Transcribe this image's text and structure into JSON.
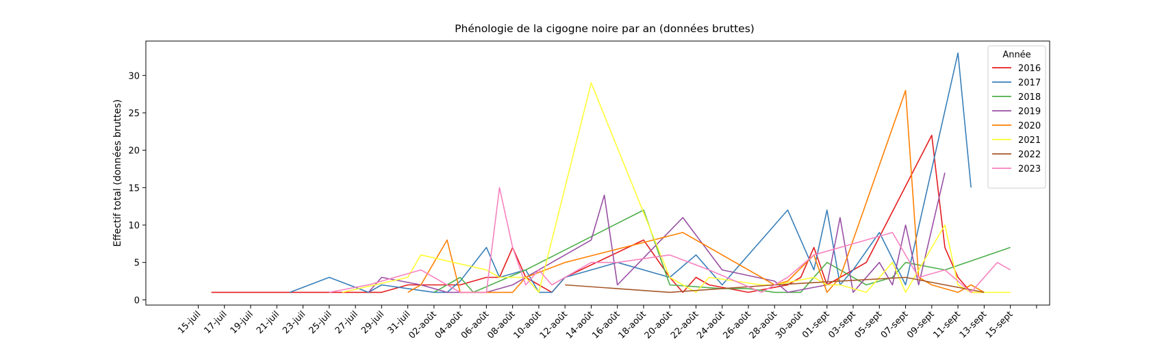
{
  "chart_data": {
    "type": "line",
    "title": "Phénologie de la cigogne noire par an (données bruttes)",
    "xlabel": "",
    "ylabel": "Effectif total (données bruttes)",
    "x_axis": "date (day of year, 2000-series calendar)",
    "xlim": [
      "07-11",
      "09-18"
    ],
    "ylim": [
      -0.7,
      34.6
    ],
    "yticks": [
      0,
      5,
      10,
      15,
      20,
      25,
      30
    ],
    "xticks": [
      {
        "date": "07-15",
        "label": "15-juil"
      },
      {
        "date": "07-17",
        "label": "17-juil"
      },
      {
        "date": "07-19",
        "label": "19-juil"
      },
      {
        "date": "07-21",
        "label": "21-juil"
      },
      {
        "date": "07-23",
        "label": "23-juil"
      },
      {
        "date": "07-25",
        "label": "25-juil"
      },
      {
        "date": "07-27",
        "label": "27-juil"
      },
      {
        "date": "07-29",
        "label": "29-juil"
      },
      {
        "date": "07-31",
        "label": "31-juil"
      },
      {
        "date": "08-02",
        "label": "02-août"
      },
      {
        "date": "08-04",
        "label": "04-août"
      },
      {
        "date": "08-06",
        "label": "06-août"
      },
      {
        "date": "08-08",
        "label": "08-août"
      },
      {
        "date": "08-10",
        "label": "10-août"
      },
      {
        "date": "08-12",
        "label": "12-août"
      },
      {
        "date": "08-14",
        "label": "14-août"
      },
      {
        "date": "08-16",
        "label": "16-août"
      },
      {
        "date": "08-18",
        "label": "18-août"
      },
      {
        "date": "08-20",
        "label": "20-août"
      },
      {
        "date": "08-22",
        "label": "22-août"
      },
      {
        "date": "08-24",
        "label": "24-août"
      },
      {
        "date": "08-26",
        "label": "26-août"
      },
      {
        "date": "08-28",
        "label": "28-août"
      },
      {
        "date": "08-30",
        "label": "30-août"
      },
      {
        "date": "09-01",
        "label": "01-sept"
      },
      {
        "date": "09-03",
        "label": "03-sept"
      },
      {
        "date": "09-05",
        "label": "05-sept"
      },
      {
        "date": "09-07",
        "label": "07-sept"
      },
      {
        "date": "09-09",
        "label": "09-sept"
      },
      {
        "date": "09-11",
        "label": "11-sept"
      },
      {
        "date": "09-13",
        "label": "13-sept"
      },
      {
        "date": "09-15",
        "label": "15-sept"
      }
    ],
    "legend": {
      "title": "Année",
      "position": "top-right"
    },
    "grid": false,
    "series": [
      {
        "name": "2016",
        "color": "#e41a1c",
        "points": [
          [
            "07-16",
            1
          ],
          [
            "07-29",
            1
          ],
          [
            "07-31",
            2
          ],
          [
            "08-04",
            2
          ],
          [
            "08-06",
            3
          ],
          [
            "08-07",
            3
          ],
          [
            "08-08",
            7
          ],
          [
            "08-09",
            3
          ],
          [
            "08-11",
            1
          ],
          [
            "08-12",
            3
          ],
          [
            "08-18",
            8
          ],
          [
            "08-20",
            3
          ],
          [
            "08-21",
            1
          ],
          [
            "08-22",
            3
          ],
          [
            "08-23",
            2
          ],
          [
            "08-26",
            1
          ],
          [
            "08-29",
            2
          ],
          [
            "08-30",
            3
          ],
          [
            "08-31",
            7
          ],
          [
            "09-01",
            2
          ],
          [
            "09-04",
            5
          ],
          [
            "09-09",
            22
          ],
          [
            "09-10",
            7
          ],
          [
            "09-11",
            3
          ],
          [
            "09-12",
            1
          ],
          [
            "09-13",
            1
          ]
        ]
      },
      {
        "name": "2017",
        "color": "#377eb8",
        "points": [
          [
            "07-22",
            1
          ],
          [
            "07-25",
            3
          ],
          [
            "07-28",
            1
          ],
          [
            "07-29",
            2
          ],
          [
            "07-31",
            1.5
          ],
          [
            "08-02",
            1
          ],
          [
            "08-03",
            1
          ],
          [
            "08-04",
            2.5
          ],
          [
            "08-06",
            7
          ],
          [
            "08-07",
            3
          ],
          [
            "08-09",
            4
          ],
          [
            "08-10",
            1
          ],
          [
            "08-11",
            1
          ],
          [
            "08-12",
            3
          ],
          [
            "08-16",
            5
          ],
          [
            "08-20",
            3
          ],
          [
            "08-22",
            6
          ],
          [
            "08-24",
            2
          ],
          [
            "08-29",
            12
          ],
          [
            "08-31",
            4
          ],
          [
            "09-01",
            12
          ],
          [
            "09-02",
            2
          ],
          [
            "09-03",
            4
          ],
          [
            "09-05",
            9
          ],
          [
            "09-07",
            2
          ],
          [
            "09-11",
            33
          ],
          [
            "09-12",
            15
          ]
        ]
      },
      {
        "name": "2018",
        "color": "#4daf4a",
        "points": [
          [
            "08-02",
            1
          ],
          [
            "08-04",
            3
          ],
          [
            "08-05",
            1
          ],
          [
            "08-09",
            4
          ],
          [
            "08-18",
            12
          ],
          [
            "08-20",
            2
          ],
          [
            "08-24",
            1.5
          ],
          [
            "08-26",
            1.5
          ],
          [
            "08-28",
            1
          ],
          [
            "08-30",
            1
          ],
          [
            "09-01",
            5
          ],
          [
            "09-02",
            4
          ],
          [
            "09-04",
            2
          ],
          [
            "09-06",
            3
          ],
          [
            "09-07",
            5
          ],
          [
            "09-10",
            4
          ],
          [
            "09-15",
            7
          ]
        ]
      },
      {
        "name": "2019",
        "color": "#984ea3",
        "points": [
          [
            "07-28",
            1
          ],
          [
            "07-29",
            3
          ],
          [
            "08-01",
            2
          ],
          [
            "08-02",
            1.5
          ],
          [
            "08-03",
            1
          ],
          [
            "08-05",
            1
          ],
          [
            "08-06",
            1
          ],
          [
            "08-08",
            2
          ],
          [
            "08-10",
            4
          ],
          [
            "08-14",
            8
          ],
          [
            "08-15",
            14
          ],
          [
            "08-16",
            2
          ],
          [
            "08-21",
            11
          ],
          [
            "08-24",
            4
          ],
          [
            "08-28",
            2.5
          ],
          [
            "08-29",
            1
          ],
          [
            "09-01",
            2
          ],
          [
            "09-02",
            11
          ],
          [
            "09-03",
            1
          ],
          [
            "09-05",
            5
          ],
          [
            "09-06",
            2
          ],
          [
            "09-07",
            10
          ],
          [
            "09-08",
            2
          ],
          [
            "09-10",
            17
          ]
        ]
      },
      {
        "name": "2020",
        "color": "#ff7f00",
        "points": [
          [
            "07-31",
            1
          ],
          [
            "08-01",
            2
          ],
          [
            "08-03",
            8
          ],
          [
            "08-04",
            1
          ],
          [
            "08-05",
            1
          ],
          [
            "08-07",
            1
          ],
          [
            "08-08",
            1
          ],
          [
            "08-09",
            3
          ],
          [
            "08-12",
            5
          ],
          [
            "08-21",
            9
          ],
          [
            "08-28",
            2
          ],
          [
            "08-29",
            2.5
          ],
          [
            "08-31",
            6
          ],
          [
            "09-01",
            1
          ],
          [
            "09-02",
            3
          ],
          [
            "09-07",
            28
          ],
          [
            "09-08",
            3
          ],
          [
            "09-09",
            2
          ],
          [
            "09-11",
            1
          ],
          [
            "09-12",
            2
          ],
          [
            "09-13",
            1
          ]
        ]
      },
      {
        "name": "2021",
        "color": "#ffff33",
        "points": [
          [
            "07-26",
            1
          ],
          [
            "07-31",
            3
          ],
          [
            "08-01",
            6
          ],
          [
            "08-06",
            4
          ],
          [
            "08-07",
            3
          ],
          [
            "08-09",
            3
          ],
          [
            "08-10",
            1
          ],
          [
            "08-14",
            29
          ],
          [
            "08-20",
            3
          ],
          [
            "08-21",
            2
          ],
          [
            "08-22",
            1
          ],
          [
            "08-23",
            3
          ],
          [
            "08-27",
            2
          ],
          [
            "08-28",
            2
          ],
          [
            "08-31",
            3
          ],
          [
            "09-01",
            2
          ],
          [
            "09-02",
            2
          ],
          [
            "09-04",
            1
          ],
          [
            "09-06",
            5
          ],
          [
            "09-07",
            1
          ],
          [
            "09-10",
            10
          ],
          [
            "09-11",
            2
          ],
          [
            "09-12",
            1
          ],
          [
            "09-15",
            1
          ]
        ]
      },
      {
        "name": "2022",
        "color": "#a65628",
        "points": [
          [
            "08-12",
            2
          ],
          [
            "08-20",
            1
          ],
          [
            "08-24",
            1.5
          ],
          [
            "08-28",
            2
          ],
          [
            "09-07",
            3
          ],
          [
            "09-13",
            1
          ]
        ]
      },
      {
        "name": "2023",
        "color": "#f781bf",
        "points": [
          [
            "07-25",
            1
          ],
          [
            "07-28",
            2
          ],
          [
            "08-01",
            4
          ],
          [
            "08-03",
            2
          ],
          [
            "08-04",
            1
          ],
          [
            "08-05",
            1
          ],
          [
            "08-06",
            1
          ],
          [
            "08-07",
            15
          ],
          [
            "08-08",
            7
          ],
          [
            "08-09",
            2
          ],
          [
            "08-10",
            4
          ],
          [
            "08-11",
            2
          ],
          [
            "08-14",
            5
          ],
          [
            "08-16",
            5
          ],
          [
            "08-20",
            6
          ],
          [
            "08-23",
            4
          ],
          [
            "08-25",
            2.5
          ],
          [
            "08-27",
            1
          ],
          [
            "08-29",
            3
          ],
          [
            "08-31",
            6
          ],
          [
            "09-06",
            9
          ],
          [
            "09-08",
            3
          ],
          [
            "09-10",
            4
          ],
          [
            "09-12",
            1
          ],
          [
            "09-14",
            5
          ],
          [
            "09-15",
            4
          ]
        ]
      }
    ]
  }
}
